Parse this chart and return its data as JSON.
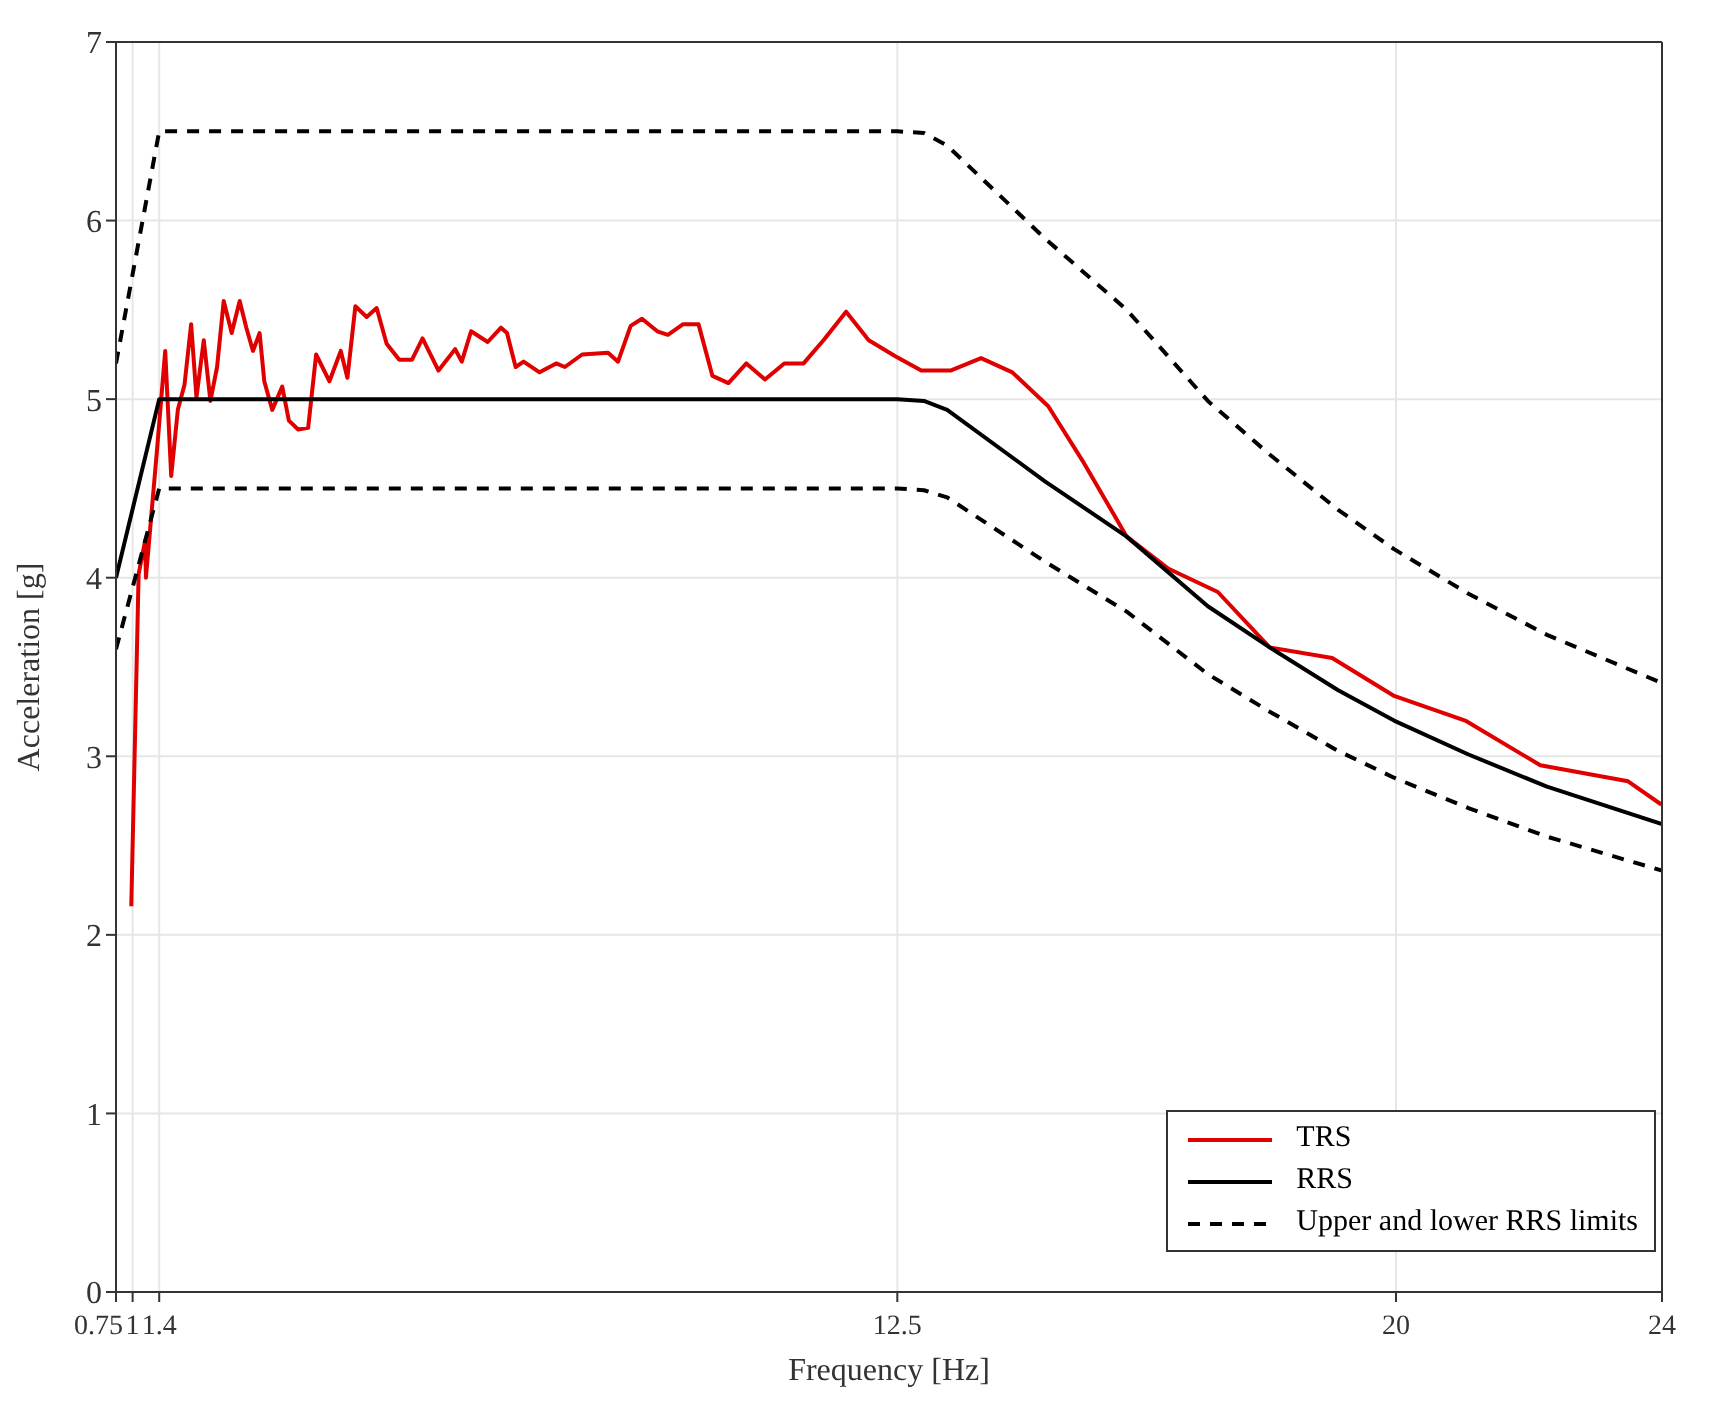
{
  "chart_data": {
    "type": "line",
    "xlabel": "Frequency [Hz]",
    "ylabel": "Acceleration [g]",
    "xlim": [
      0.75,
      24
    ],
    "ylim": [
      0,
      7
    ],
    "xticks": [
      0.75,
      1,
      1.4,
      12.5,
      20,
      24
    ],
    "yticks": [
      0,
      1,
      2,
      3,
      4,
      5,
      6,
      7
    ],
    "grid": true,
    "legend": "bottom right",
    "marker": "none",
    "series": [
      {
        "name": "TRS",
        "color": "#e00000",
        "line_style": "solid",
        "x": [
          0.98,
          1.09,
          1.19,
          1.2,
          1.37,
          1.49,
          1.58,
          1.68,
          1.78,
          1.88,
          1.96,
          2.07,
          2.17,
          2.27,
          2.37,
          2.49,
          2.61,
          2.71,
          2.81,
          2.91,
          2.98,
          3.1,
          3.25,
          3.35,
          3.49,
          3.64,
          3.76,
          3.96,
          4.13,
          4.23,
          4.35,
          4.52,
          4.67,
          4.82,
          5.01,
          5.2,
          5.36,
          5.6,
          5.85,
          5.95,
          6.09,
          6.34,
          6.54,
          6.63,
          6.76,
          6.88,
          7.12,
          7.37,
          7.5,
          7.76,
          8.15,
          8.3,
          8.49,
          8.66,
          8.89,
          9.05,
          9.28,
          9.51,
          9.72,
          9.96,
          10.23,
          10.51,
          10.8,
          11.09,
          11.39,
          11.73,
          12.07,
          12.47,
          12.86,
          13.3,
          13.76,
          14.23,
          14.77,
          15.31,
          15.95,
          16.58,
          17.32,
          18.1,
          19.04,
          19.96,
          21.04,
          22.17,
          23.49,
          23.99
        ],
        "values": [
          2.16,
          4.02,
          4.21,
          4.0,
          4.73,
          5.27,
          4.57,
          4.94,
          5.08,
          5.42,
          5.01,
          5.33,
          4.99,
          5.18,
          5.55,
          5.37,
          5.55,
          5.4,
          5.27,
          5.37,
          5.1,
          4.94,
          5.07,
          4.88,
          4.83,
          4.84,
          5.25,
          5.1,
          5.27,
          5.12,
          5.52,
          5.46,
          5.51,
          5.31,
          5.22,
          5.22,
          5.34,
          5.16,
          5.28,
          5.21,
          5.38,
          5.32,
          5.4,
          5.37,
          5.18,
          5.21,
          5.15,
          5.2,
          5.18,
          5.25,
          5.26,
          5.21,
          5.41,
          5.45,
          5.38,
          5.36,
          5.42,
          5.42,
          5.13,
          5.09,
          5.2,
          5.11,
          5.2,
          5.2,
          5.33,
          5.49,
          5.33,
          5.24,
          5.16,
          5.16,
          5.23,
          5.15,
          4.96,
          4.64,
          4.23,
          4.05,
          3.92,
          3.61,
          3.55,
          3.34,
          3.2,
          2.95,
          2.86,
          2.73
        ]
      },
      {
        "name": "RRS",
        "color": "#000000",
        "line_style": "solid",
        "x": [
          0.75,
          1.4,
          12.5,
          12.9,
          13.25,
          14.72,
          15.95,
          17.17,
          18.1,
          19.13,
          19.97,
          21.09,
          22.27,
          24
        ],
        "values": [
          4.0,
          5.0,
          5.0,
          4.99,
          4.94,
          4.54,
          4.23,
          3.84,
          3.61,
          3.37,
          3.2,
          3.01,
          2.83,
          2.62
        ]
      },
      {
        "name": "Upper and lower RRS limits",
        "color": "#000000",
        "line_style": "dashed",
        "x": [
          0.75,
          1.4,
          12.5,
          12.9,
          13.25,
          14.72,
          15.95,
          17.17,
          18.1,
          19.13,
          19.97,
          21.09,
          22.27,
          24
        ],
        "values": [
          5.2,
          6.5,
          6.5,
          6.49,
          6.42,
          5.9,
          5.5,
          4.99,
          4.69,
          4.38,
          4.16,
          3.91,
          3.68,
          3.41
        ]
      },
      {
        "color": "#000000",
        "line_style": "dashed",
        "x": [
          0.75,
          1.4,
          12.5,
          12.9,
          13.25,
          14.72,
          15.95,
          17.17,
          18.1,
          19.13,
          19.97,
          21.09,
          22.27,
          24
        ],
        "values": [
          3.6,
          4.5,
          4.5,
          4.49,
          4.45,
          4.09,
          3.81,
          3.46,
          3.25,
          3.03,
          2.88,
          2.71,
          2.55,
          2.36
        ]
      }
    ]
  }
}
